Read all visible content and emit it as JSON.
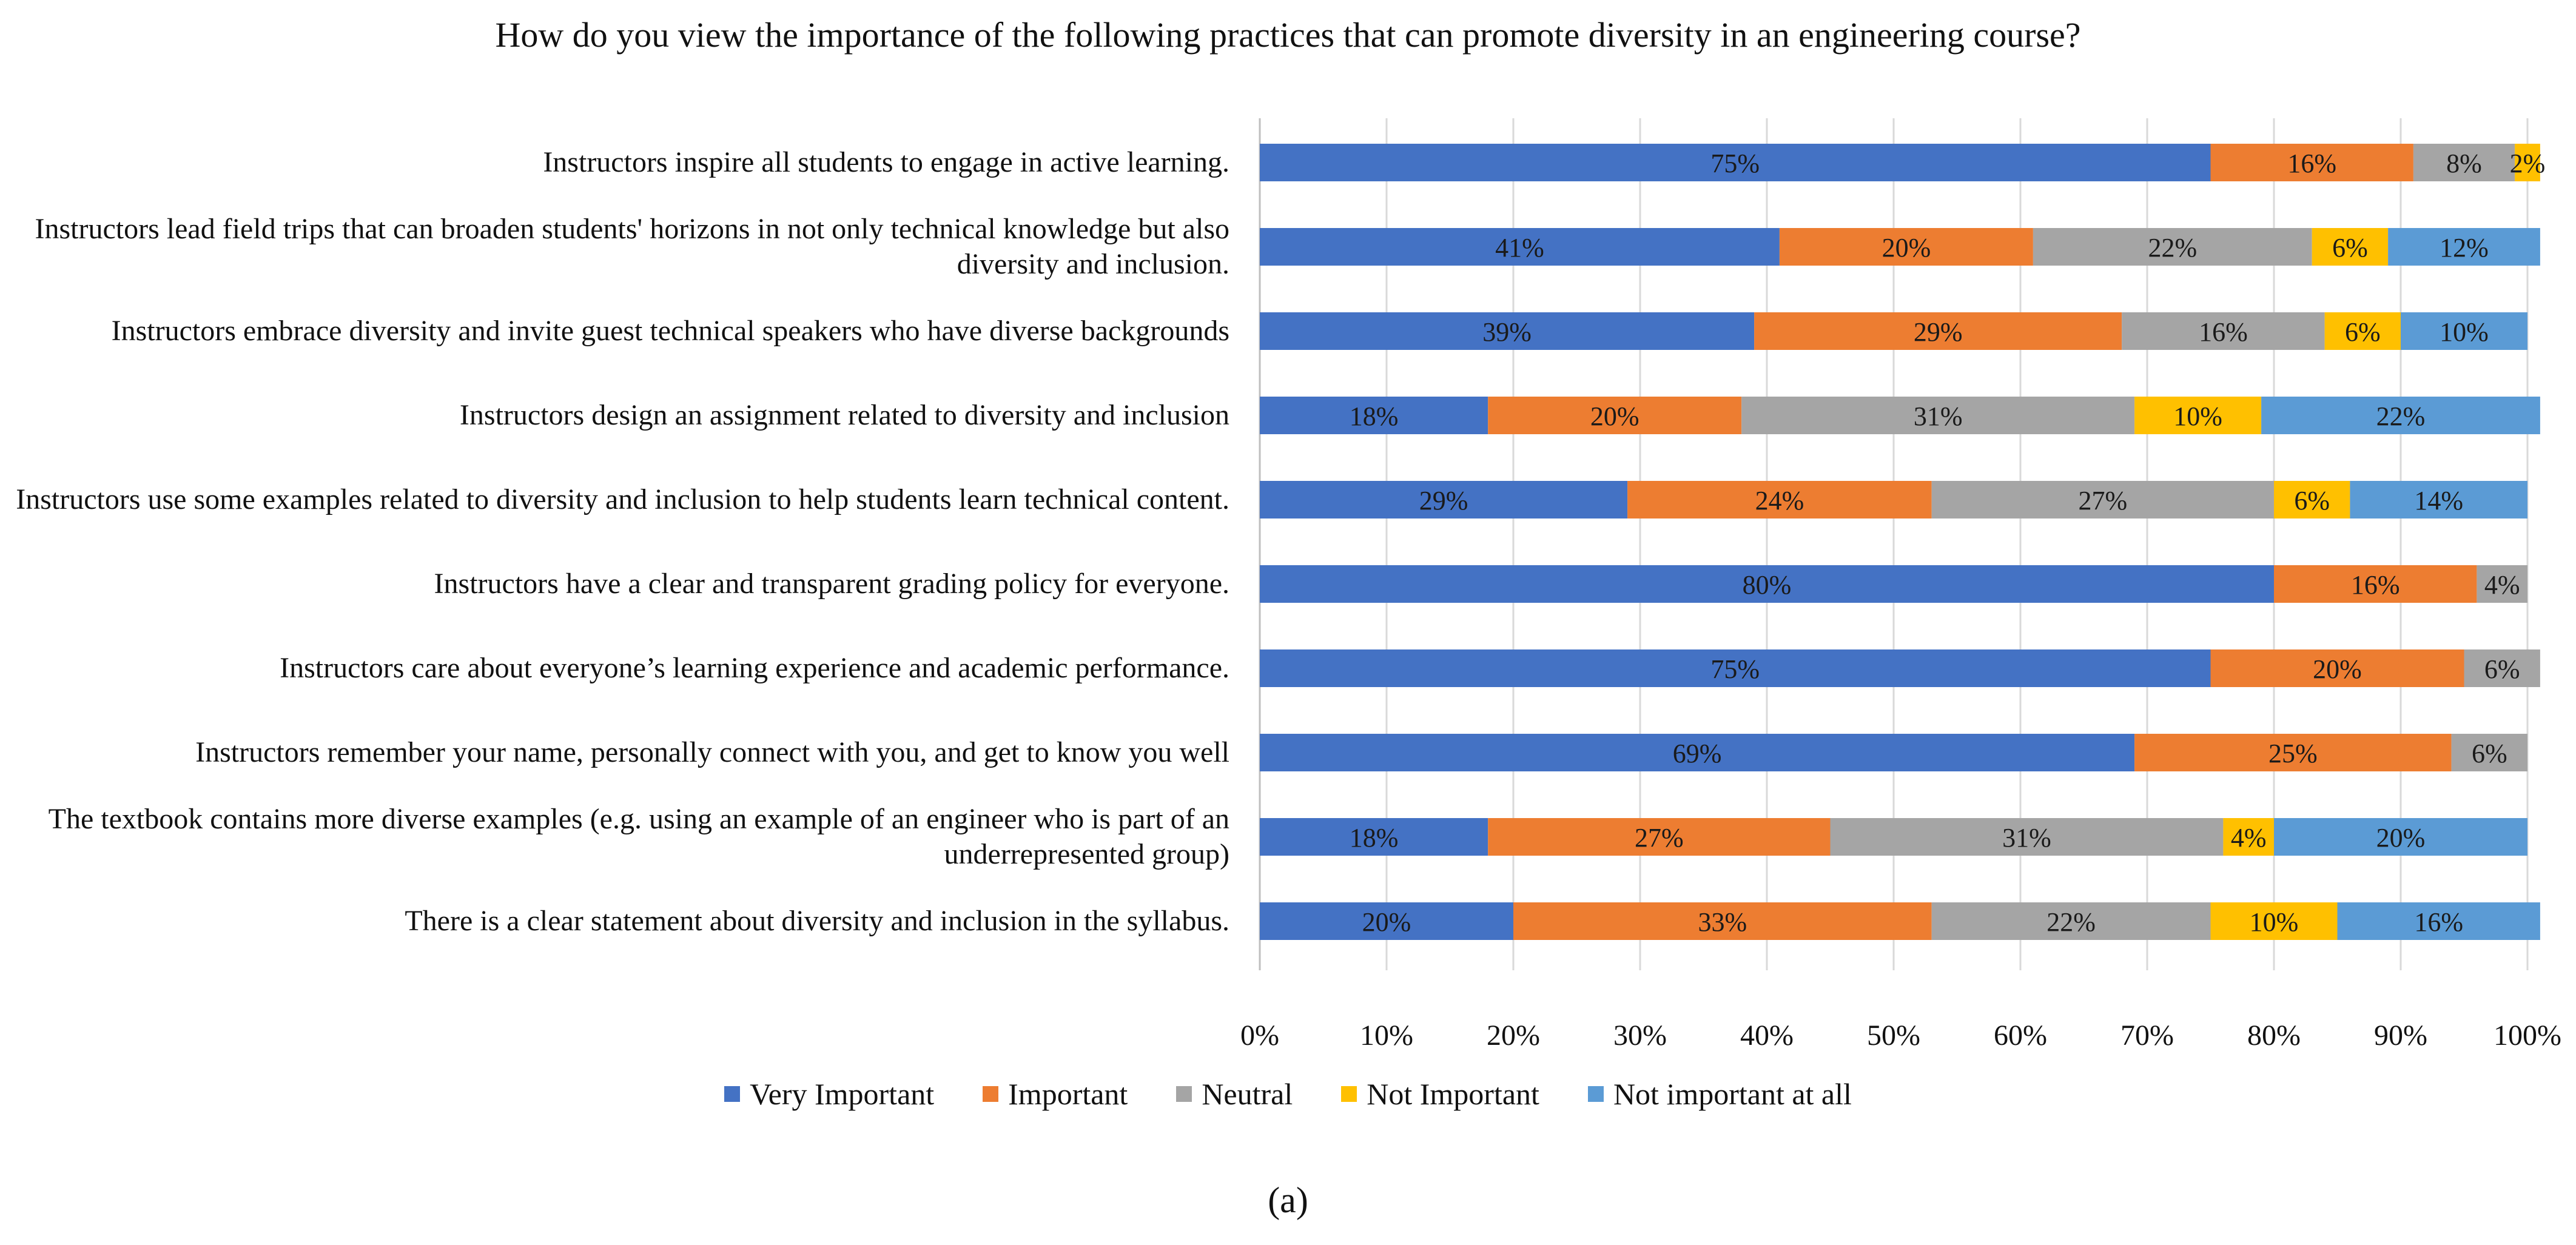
{
  "chart_data": {
    "type": "bar",
    "orientation": "horizontal",
    "stacked": true,
    "title": "How do you view  the importance of the following  practices that can promote diversity  in an engineering  course?",
    "categories": [
      "Instructors inspire all students to engage in active learning.",
      "Instructors lead field trips that can broaden students' horizons in not only technical knowledge but also diversity and inclusion.",
      "Instructors embrace diversity and invite guest technical speakers who have diverse backgrounds",
      "Instructors design an assignment related to diversity and inclusion",
      "Instructors use some examples related to diversity and inclusion to help students learn technical content.",
      "Instructors have a clear and transparent grading policy for everyone.",
      "Instructors care about everyone’s learning experience and academic performance.",
      "Instructors remember your name, personally connect with you, and get to know you well",
      "The textbook contains more diverse examples (e.g. using an example of an engineer who is part of an underrepresented group)",
      "There is a clear statement about diversity and inclusion in the syllabus."
    ],
    "series": [
      {
        "name": "Very Important",
        "color": "#4472C4",
        "values": [
          75,
          41,
          39,
          18,
          29,
          80,
          75,
          69,
          18,
          20
        ]
      },
      {
        "name": "Important",
        "color": "#ED7D31",
        "values": [
          16,
          20,
          29,
          20,
          24,
          16,
          20,
          25,
          27,
          33
        ]
      },
      {
        "name": "Neutral",
        "color": "#A5A5A5",
        "values": [
          8,
          22,
          16,
          31,
          27,
          4,
          6,
          6,
          31,
          22
        ]
      },
      {
        "name": "Not Important",
        "color": "#FFC000",
        "values": [
          2,
          6,
          6,
          10,
          6,
          0,
          0,
          0,
          4,
          10
        ]
      },
      {
        "name": "Not important at all",
        "color": "#5B9BD5",
        "values": [
          0,
          12,
          10,
          22,
          14,
          0,
          0,
          0,
          20,
          16
        ]
      }
    ],
    "data_labels": [
      [
        "75%",
        "16%",
        "8%",
        "2%",
        ""
      ],
      [
        "41%",
        "20%",
        "22%",
        "6%",
        "12%"
      ],
      [
        "39%",
        "29%",
        "16%",
        "6%",
        "10%"
      ],
      [
        "18%",
        "20%",
        "31%",
        "10%",
        "22%"
      ],
      [
        "29%",
        "24%",
        "27%",
        "6%",
        "14%"
      ],
      [
        "80%",
        "16%",
        "4%",
        "",
        ""
      ],
      [
        "75%",
        "20%",
        "6%",
        "",
        ""
      ],
      [
        "69%",
        "25%",
        "6%",
        "",
        ""
      ],
      [
        "18%",
        "27%",
        "31%",
        "4%",
        "20%"
      ],
      [
        "20%",
        "33%",
        "22%",
        "10%",
        "16%"
      ]
    ],
    "x_ticks": [
      "0%",
      "10%",
      "20%",
      "30%",
      "40%",
      "50%",
      "60%",
      "70%",
      "80%",
      "90%",
      "100%"
    ],
    "xlim": [
      0,
      100
    ],
    "xlabel": "",
    "ylabel": "",
    "grid": true,
    "legend_position": "bottom",
    "caption": "(a)"
  }
}
